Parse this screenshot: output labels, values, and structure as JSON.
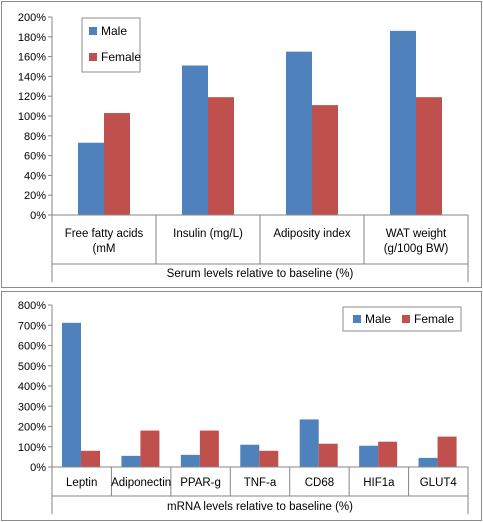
{
  "colors": {
    "male": "#4f81bd",
    "female": "#c0504d",
    "grid": "#868686",
    "axis": "#868686"
  },
  "chart_data": [
    {
      "type": "bar",
      "title": "",
      "xlabel": "Serum levels relative to baseline (%)",
      "ylabel": "",
      "ylim": [
        0,
        200
      ],
      "ytick_step": 20,
      "ytick_labels": [
        "0%",
        "20%",
        "40%",
        "60%",
        "80%",
        "100%",
        "120%",
        "140%",
        "160%",
        "180%",
        "200%"
      ],
      "categories": [
        [
          "Free fatty acids",
          "(mM"
        ],
        [
          "Insulin (mg/L)"
        ],
        [
          "Adiposity index"
        ],
        [
          "WAT weight",
          "(g/100g BW)"
        ]
      ],
      "series": [
        {
          "name": "Male",
          "values": [
            73,
            151,
            165,
            186
          ]
        },
        {
          "name": "Female",
          "values": [
            103,
            119,
            111,
            119
          ]
        }
      ],
      "legend": "top-left"
    },
    {
      "type": "bar",
      "title": "",
      "xlabel": "mRNA levels relative to baseline (%)",
      "ylabel": "",
      "ylim": [
        0,
        800
      ],
      "ytick_step": 100,
      "ytick_labels": [
        "0%",
        "100%",
        "200%",
        "300%",
        "400%",
        "500%",
        "600%",
        "700%",
        "800%"
      ],
      "categories": [
        [
          "Leptin"
        ],
        [
          "Adiponectin"
        ],
        [
          "PPAR-g"
        ],
        [
          "TNF-a"
        ],
        [
          "CD68"
        ],
        [
          "HIF1a"
        ],
        [
          "GLUT4"
        ]
      ],
      "series": [
        {
          "name": "Male",
          "values": [
            712,
            55,
            60,
            110,
            235,
            105,
            45
          ]
        },
        {
          "name": "Female",
          "values": [
            80,
            180,
            180,
            80,
            115,
            125,
            150
          ]
        }
      ],
      "legend": "top-right"
    }
  ]
}
